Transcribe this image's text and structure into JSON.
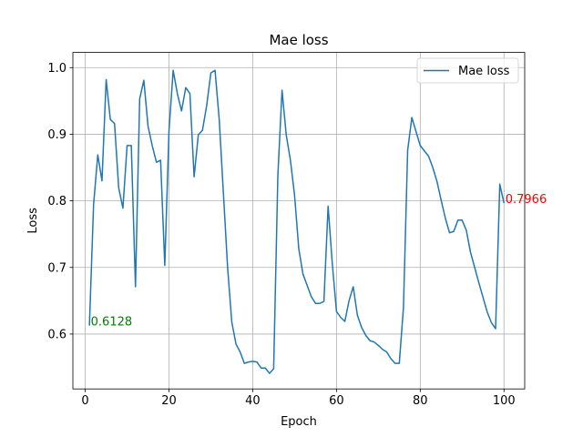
{
  "chart_data": {
    "type": "line",
    "title": "Mae loss",
    "xlabel": "Epoch",
    "ylabel": "Loss",
    "xlim": [
      -2.95,
      104.95
    ],
    "ylim": [
      0.5176,
      1.0228
    ],
    "xticks": [
      0,
      20,
      40,
      60,
      80,
      100
    ],
    "xtick_labels": [
      "0",
      "20",
      "40",
      "60",
      "80",
      "100"
    ],
    "yticks": [
      0.6,
      0.7,
      0.8,
      0.9,
      1.0
    ],
    "ytick_labels": [
      "0.6",
      "0.7",
      "0.8",
      "0.9",
      "1.0"
    ],
    "grid": true,
    "legend_position": "top-right",
    "series": [
      {
        "name": "Mae loss",
        "color": "#1f77b4",
        "x": [
          1,
          2,
          3,
          4,
          5,
          6,
          7,
          8,
          9,
          10,
          11,
          12,
          13,
          14,
          15,
          16,
          17,
          18,
          19,
          20,
          21,
          22,
          23,
          24,
          25,
          26,
          27,
          28,
          29,
          30,
          31,
          32,
          33,
          34,
          35,
          36,
          37,
          38,
          39,
          40,
          41,
          42,
          43,
          44,
          45,
          46,
          47,
          48,
          49,
          50,
          51,
          52,
          53,
          54,
          55,
          56,
          57,
          58,
          59,
          60,
          61,
          62,
          63,
          64,
          65,
          66,
          67,
          68,
          69,
          70,
          71,
          72,
          73,
          74,
          75,
          76,
          77,
          78,
          79,
          80,
          81,
          82,
          83,
          84,
          85,
          86,
          87,
          88,
          89,
          90,
          91,
          92,
          93,
          94,
          95,
          96,
          97,
          98,
          99,
          100
        ],
        "values": [
          0.6128,
          0.795,
          0.869,
          0.83,
          0.982,
          0.922,
          0.916,
          0.819,
          0.789,
          0.883,
          0.883,
          0.671,
          0.953,
          0.981,
          0.912,
          0.883,
          0.858,
          0.861,
          0.703,
          0.905,
          0.996,
          0.961,
          0.935,
          0.97,
          0.961,
          0.836,
          0.899,
          0.906,
          0.943,
          0.992,
          0.996,
          0.922,
          0.811,
          0.7,
          0.618,
          0.585,
          0.573,
          0.556,
          0.558,
          0.559,
          0.558,
          0.549,
          0.549,
          0.541,
          0.548,
          0.838,
          0.966,
          0.899,
          0.861,
          0.808,
          0.728,
          0.69,
          0.673,
          0.656,
          0.646,
          0.646,
          0.649,
          0.792,
          0.706,
          0.634,
          0.625,
          0.619,
          0.65,
          0.671,
          0.628,
          0.61,
          0.598,
          0.59,
          0.588,
          0.583,
          0.577,
          0.573,
          0.563,
          0.556,
          0.556,
          0.64,
          0.876,
          0.925,
          0.904,
          0.883,
          0.875,
          0.867,
          0.85,
          0.829,
          0.801,
          0.774,
          0.752,
          0.754,
          0.771,
          0.771,
          0.756,
          0.723,
          0.7,
          0.677,
          0.655,
          0.633,
          0.617,
          0.608,
          0.825,
          0.7966
        ]
      }
    ],
    "annotations": [
      {
        "text": "0.6128",
        "x": 1,
        "y": 0.6128,
        "color": "#008000"
      },
      {
        "text": "0.7966",
        "x": 100,
        "y": 0.7966,
        "color": "#ff0000"
      }
    ]
  }
}
